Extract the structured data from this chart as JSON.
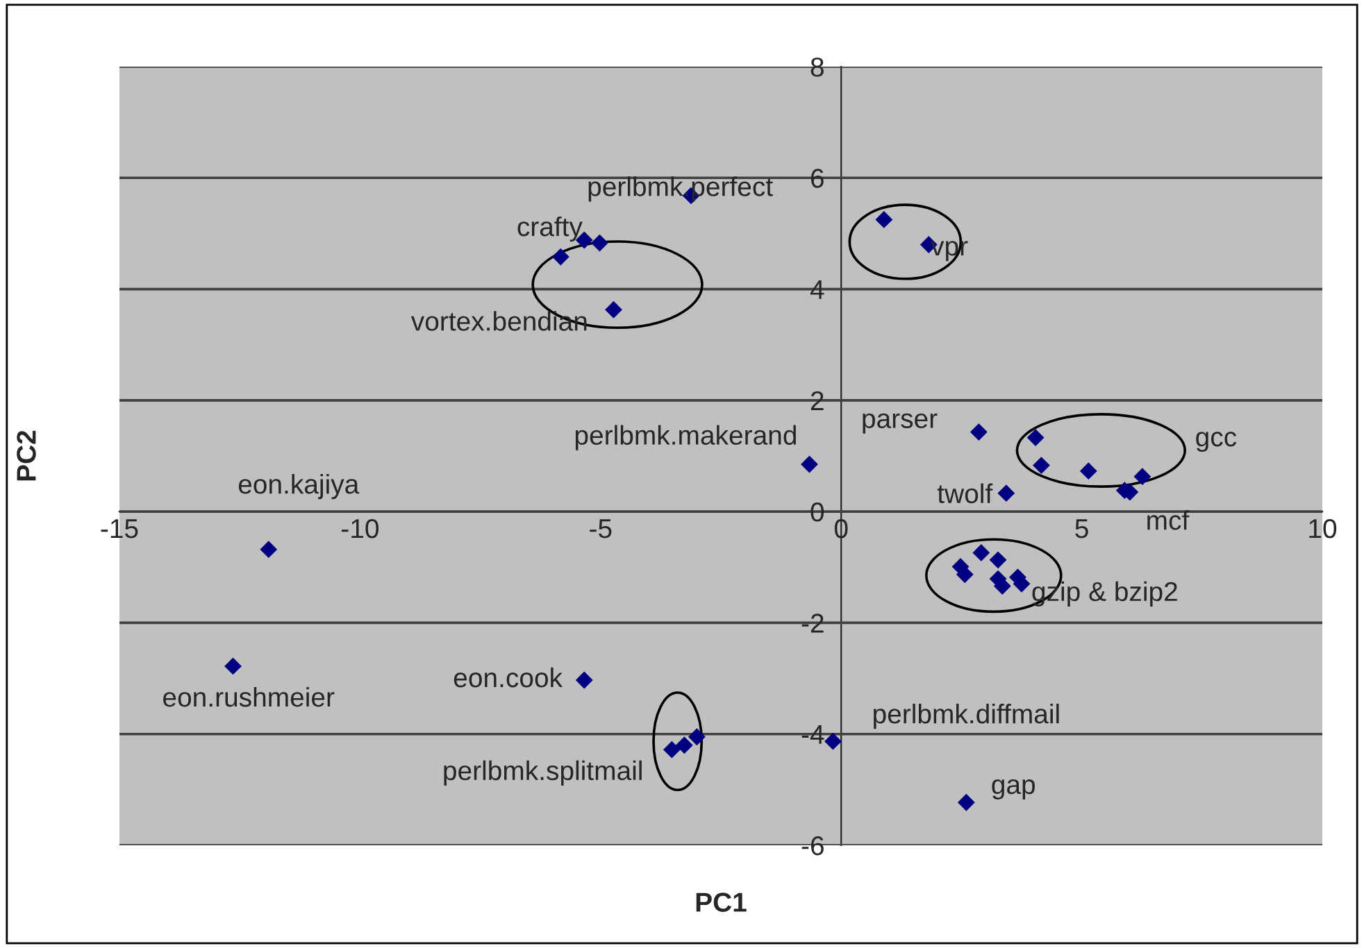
{
  "chart_data": {
    "type": "scatter",
    "xlabel": "PC1",
    "ylabel": "PC2",
    "x": [
      -3.12,
      -5.83,
      -5.34,
      -5.02,
      -4.73,
      0.89,
      1.82,
      -0.66,
      2.86,
      4.04,
      4.16,
      5.14,
      5.89,
      6.0,
      6.26,
      3.43,
      -11.9,
      -12.64,
      -5.34,
      -3.52,
      -3.26,
      -3.0,
      2.91,
      2.48,
      2.57,
      3.26,
      3.26,
      3.35,
      3.67,
      3.75,
      -0.17,
      2.6
    ],
    "values": [
      5.68,
      4.58,
      4.88,
      4.83,
      3.63,
      5.25,
      4.8,
      0.85,
      1.43,
      1.33,
      0.83,
      0.73,
      0.38,
      0.35,
      0.63,
      0.33,
      -0.68,
      -2.78,
      -3.03,
      -4.28,
      -4.2,
      -4.05,
      -0.74,
      -0.99,
      -1.13,
      -0.87,
      -1.21,
      -1.34,
      -1.18,
      -1.3,
      -4.13,
      -5.23
    ],
    "color": "#000080",
    "marker": "diamond",
    "xlim": [
      -15,
      10
    ],
    "xticks": [
      -15,
      -10,
      -5,
      0,
      5,
      10
    ],
    "ylim": [
      -6,
      8
    ],
    "yticks": [
      -6,
      -4,
      -2,
      0,
      2,
      4,
      6,
      8
    ],
    "grid": "y",
    "legend": false,
    "annotations": [
      "perlbmk.perfect",
      "crafty",
      "vortex.bendian",
      "vpr",
      "parser",
      "perlbmk.makerand",
      "gcc",
      "twolf",
      "mcf",
      "eon.kajiya",
      "gzip & bzip2",
      "eon.rushmeier",
      "eon.cook",
      "perlbmk.diffmail",
      "perlbmk.splitmail",
      "gap"
    ]
  }
}
